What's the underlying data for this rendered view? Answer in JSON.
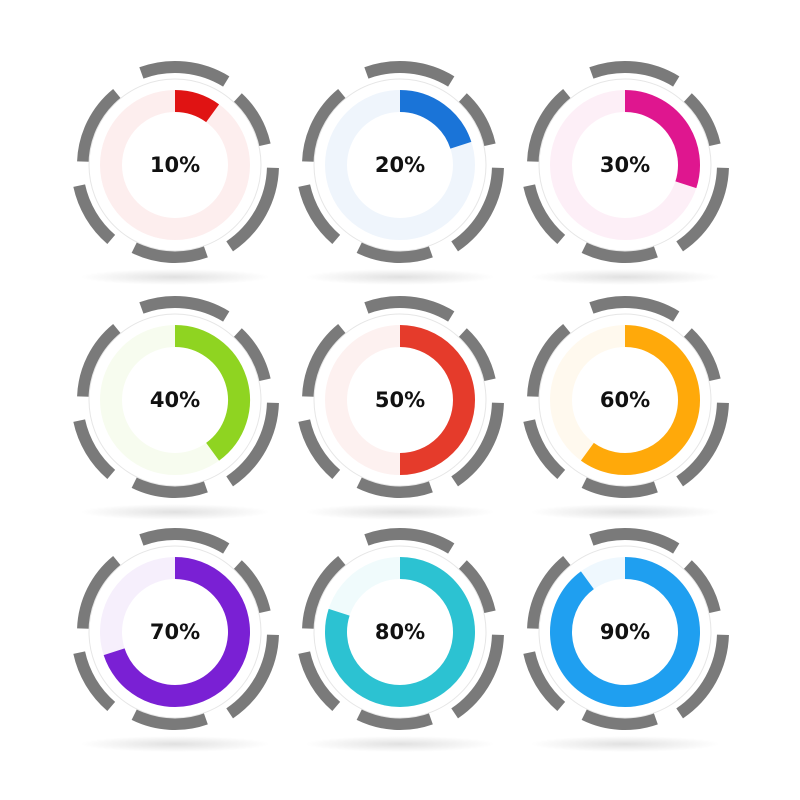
{
  "chart_data": {
    "type": "progress-ring",
    "values": [
      10,
      20,
      30,
      40,
      50,
      60,
      70,
      80,
      90
    ],
    "value_labels": [
      "10%",
      "20%",
      "30%",
      "40%",
      "50%",
      "60%",
      "70%",
      "80%",
      "90%"
    ],
    "colors": [
      "#e01313",
      "#1a74d8",
      "#df168f",
      "#8fd421",
      "#e53b2b",
      "#ffa90a",
      "#7a20d4",
      "#2cc2d2",
      "#1f9ff0"
    ],
    "ylim": [
      0,
      100
    ]
  }
}
